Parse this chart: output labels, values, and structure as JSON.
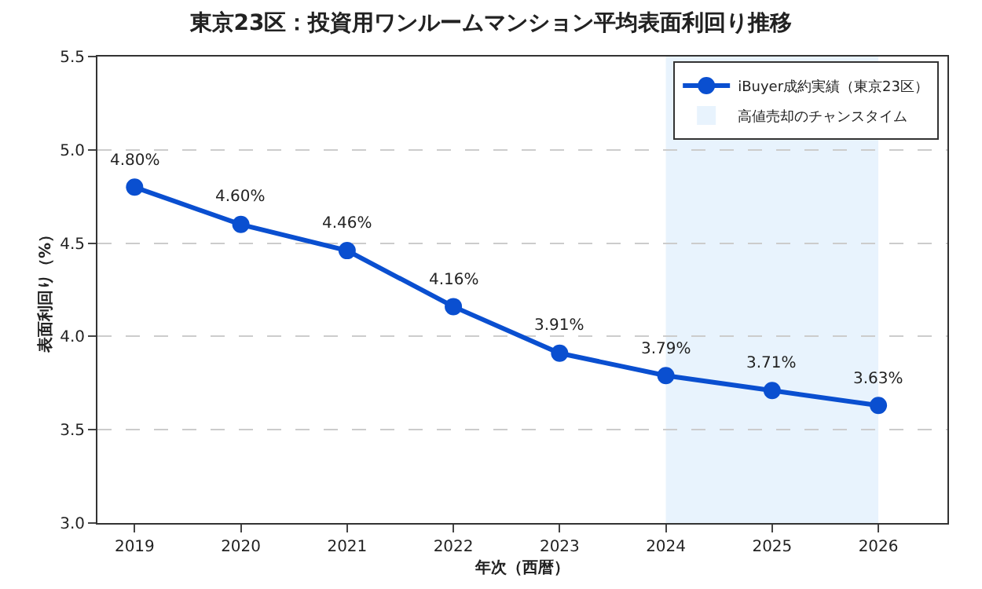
{
  "chart_data": {
    "type": "line",
    "title": "東京23区：投資用ワンルームマンション平均表面利回り推移",
    "xlabel": "年次（西暦）",
    "ylabel": "表面利回り（%）",
    "x": [
      2019,
      2020,
      2021,
      2022,
      2023,
      2024,
      2025,
      2026
    ],
    "series": [
      {
        "name": "iBuyer成約実績（東京23区）",
        "color": "#0a4fd0",
        "values": [
          4.8,
          4.6,
          4.46,
          4.16,
          3.91,
          3.79,
          3.71,
          3.63
        ],
        "value_labels": [
          "4.80%",
          "4.60%",
          "4.46%",
          "4.16%",
          "3.91%",
          "3.79%",
          "3.71%",
          "3.63%"
        ]
      }
    ],
    "bands": [
      {
        "axis": "x",
        "from": 2024,
        "to": 2026,
        "label": "高値売却のチャンスタイム",
        "color": "#e8f3fd"
      }
    ],
    "xlim": [
      2018.65,
      2026.65
    ],
    "xticks": [
      2019,
      2020,
      2021,
      2022,
      2023,
      2024,
      2025,
      2026
    ],
    "ylim": [
      3.0,
      5.5
    ],
    "yticks": [
      {
        "value": 3.0,
        "label": "3.0"
      },
      {
        "value": 3.5,
        "label": "3.5"
      },
      {
        "value": 4.0,
        "label": "4.0"
      },
      {
        "value": 4.5,
        "label": "4.5"
      },
      {
        "value": 5.0,
        "label": "5.0"
      },
      {
        "value": 5.5,
        "label": "5.5"
      }
    ],
    "grid": "y",
    "legend": "top right",
    "marker": "circle",
    "line_style": "solid"
  }
}
